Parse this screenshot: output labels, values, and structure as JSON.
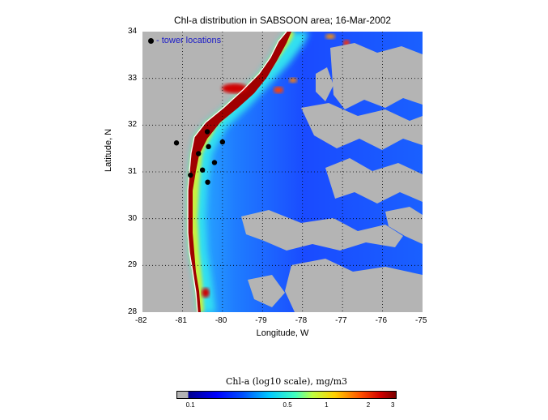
{
  "title": "Chl-a distribution in SABSOON area; 16-Mar-2002",
  "axes": {
    "xlabel": "Longitude, W",
    "ylabel": "Latitude, N",
    "xticks": [
      "-82",
      "-81",
      "-80",
      "-79",
      "-78",
      "-77",
      "-76",
      "-75"
    ],
    "yticks": [
      "34",
      "33",
      "32",
      "31",
      "30",
      "29",
      "28"
    ],
    "xlim": [
      -82,
      -75
    ],
    "ylim": [
      28,
      34
    ]
  },
  "legend": {
    "label": "- tower locations"
  },
  "towers": [
    {
      "lon": -81.15,
      "lat": 31.62
    },
    {
      "lon": -80.38,
      "lat": 31.86
    },
    {
      "lon": -80.0,
      "lat": 31.64
    },
    {
      "lon": -80.35,
      "lat": 31.54
    },
    {
      "lon": -80.6,
      "lat": 31.39
    },
    {
      "lon": -80.2,
      "lat": 31.2
    },
    {
      "lon": -80.5,
      "lat": 31.04
    },
    {
      "lon": -80.8,
      "lat": 30.93
    },
    {
      "lon": -80.37,
      "lat": 30.78
    }
  ],
  "colorbar": {
    "title": "Chl-a (log10 scale), mg/m3",
    "ticks": [
      "0.1",
      "0.5",
      "1",
      "2",
      "3"
    ]
  },
  "colors": {
    "land": "#b4b4b4",
    "ocean_deep": "#1a4bff",
    "coastal_high": "#a00000",
    "legend_text": "#1c1cc8"
  }
}
